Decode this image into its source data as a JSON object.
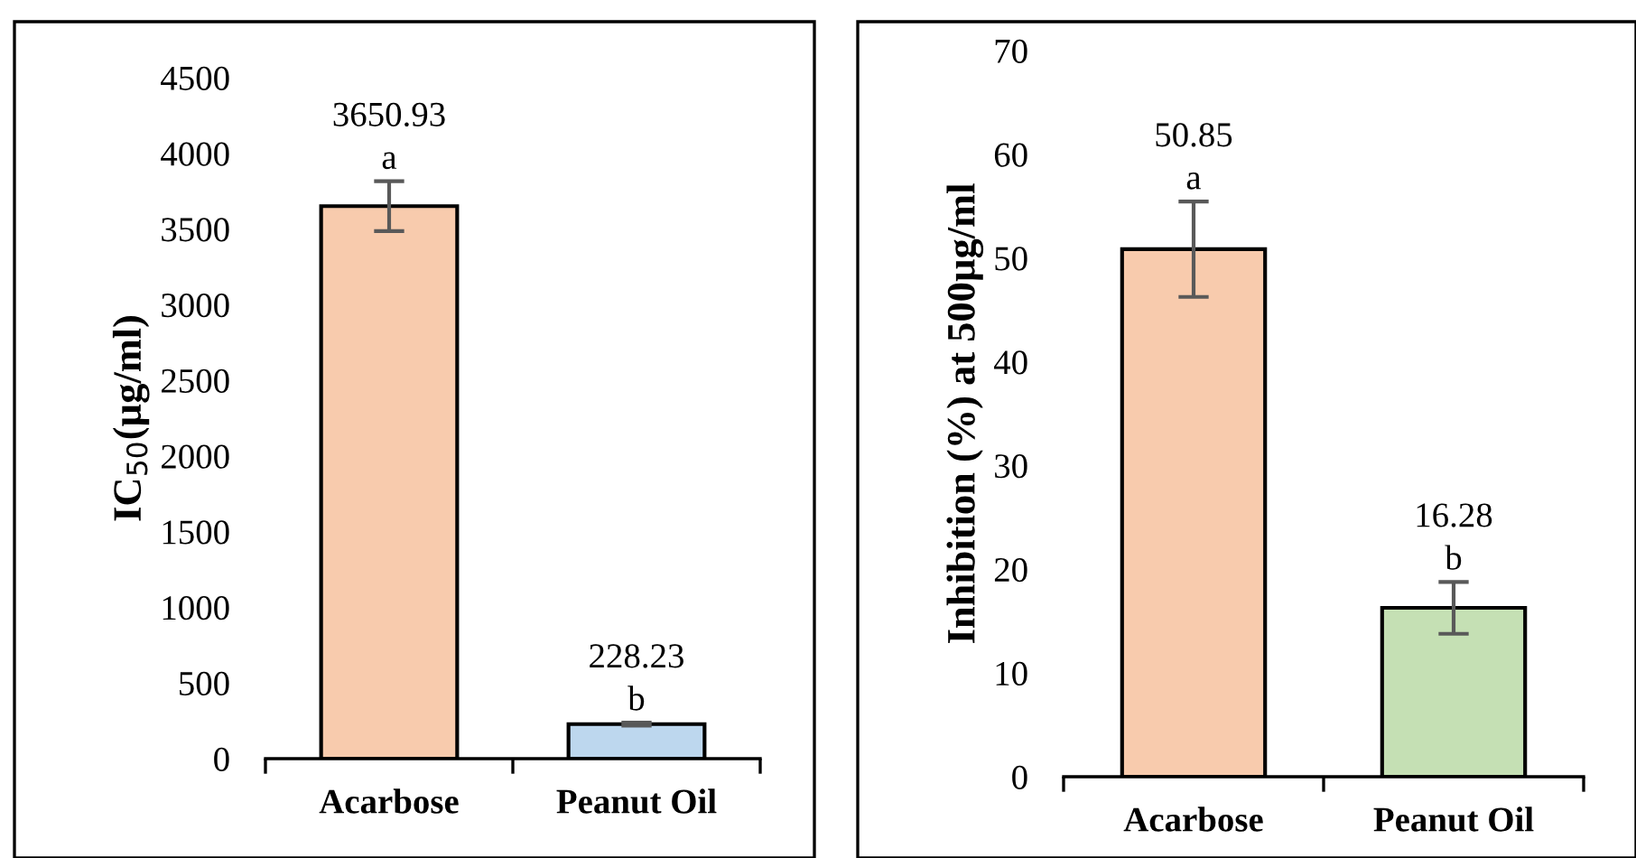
{
  "chart_data": [
    {
      "type": "bar",
      "ylabel": "IC$_{50}$(µg/ml)",
      "categories": [
        "Acarbose",
        "Peanut Oil"
      ],
      "values": [
        3650.93,
        228.23
      ],
      "colors": [
        "#f8cbad",
        "#bdd7ee"
      ],
      "errors": [
        165,
        10
      ],
      "value_labels": [
        "3650.93",
        "228.23"
      ],
      "annotations": [
        {
          "text": "a",
          "x": "Acarbose",
          "y": 3816
        },
        {
          "text": "b",
          "x": "Peanut Oil",
          "y": 238
        }
      ],
      "ylim": [
        0,
        4500
      ],
      "yticks": [
        0,
        500,
        1000,
        1500,
        2000,
        2500,
        3000,
        3500,
        4000,
        4500
      ],
      "grid": false,
      "legend": false
    },
    {
      "type": "bar",
      "ylabel": "Inhibition (%) at 500µg/ml",
      "categories": [
        "Acarbose",
        "Peanut Oil"
      ],
      "values": [
        50.85,
        16.28
      ],
      "colors": [
        "#f8cbad",
        "#c5e0b4"
      ],
      "errors": [
        4.6,
        2.5
      ],
      "value_labels": [
        "50.85",
        "16.28"
      ],
      "annotations": [
        {
          "text": "a",
          "x": "Acarbose",
          "y": 55.45
        },
        {
          "text": "b",
          "x": "Peanut Oil",
          "y": 18.78
        }
      ],
      "ylim": [
        0,
        70
      ],
      "yticks": [
        0,
        10,
        20,
        30,
        40,
        50,
        60,
        70
      ],
      "grid": false,
      "legend": false
    }
  ]
}
